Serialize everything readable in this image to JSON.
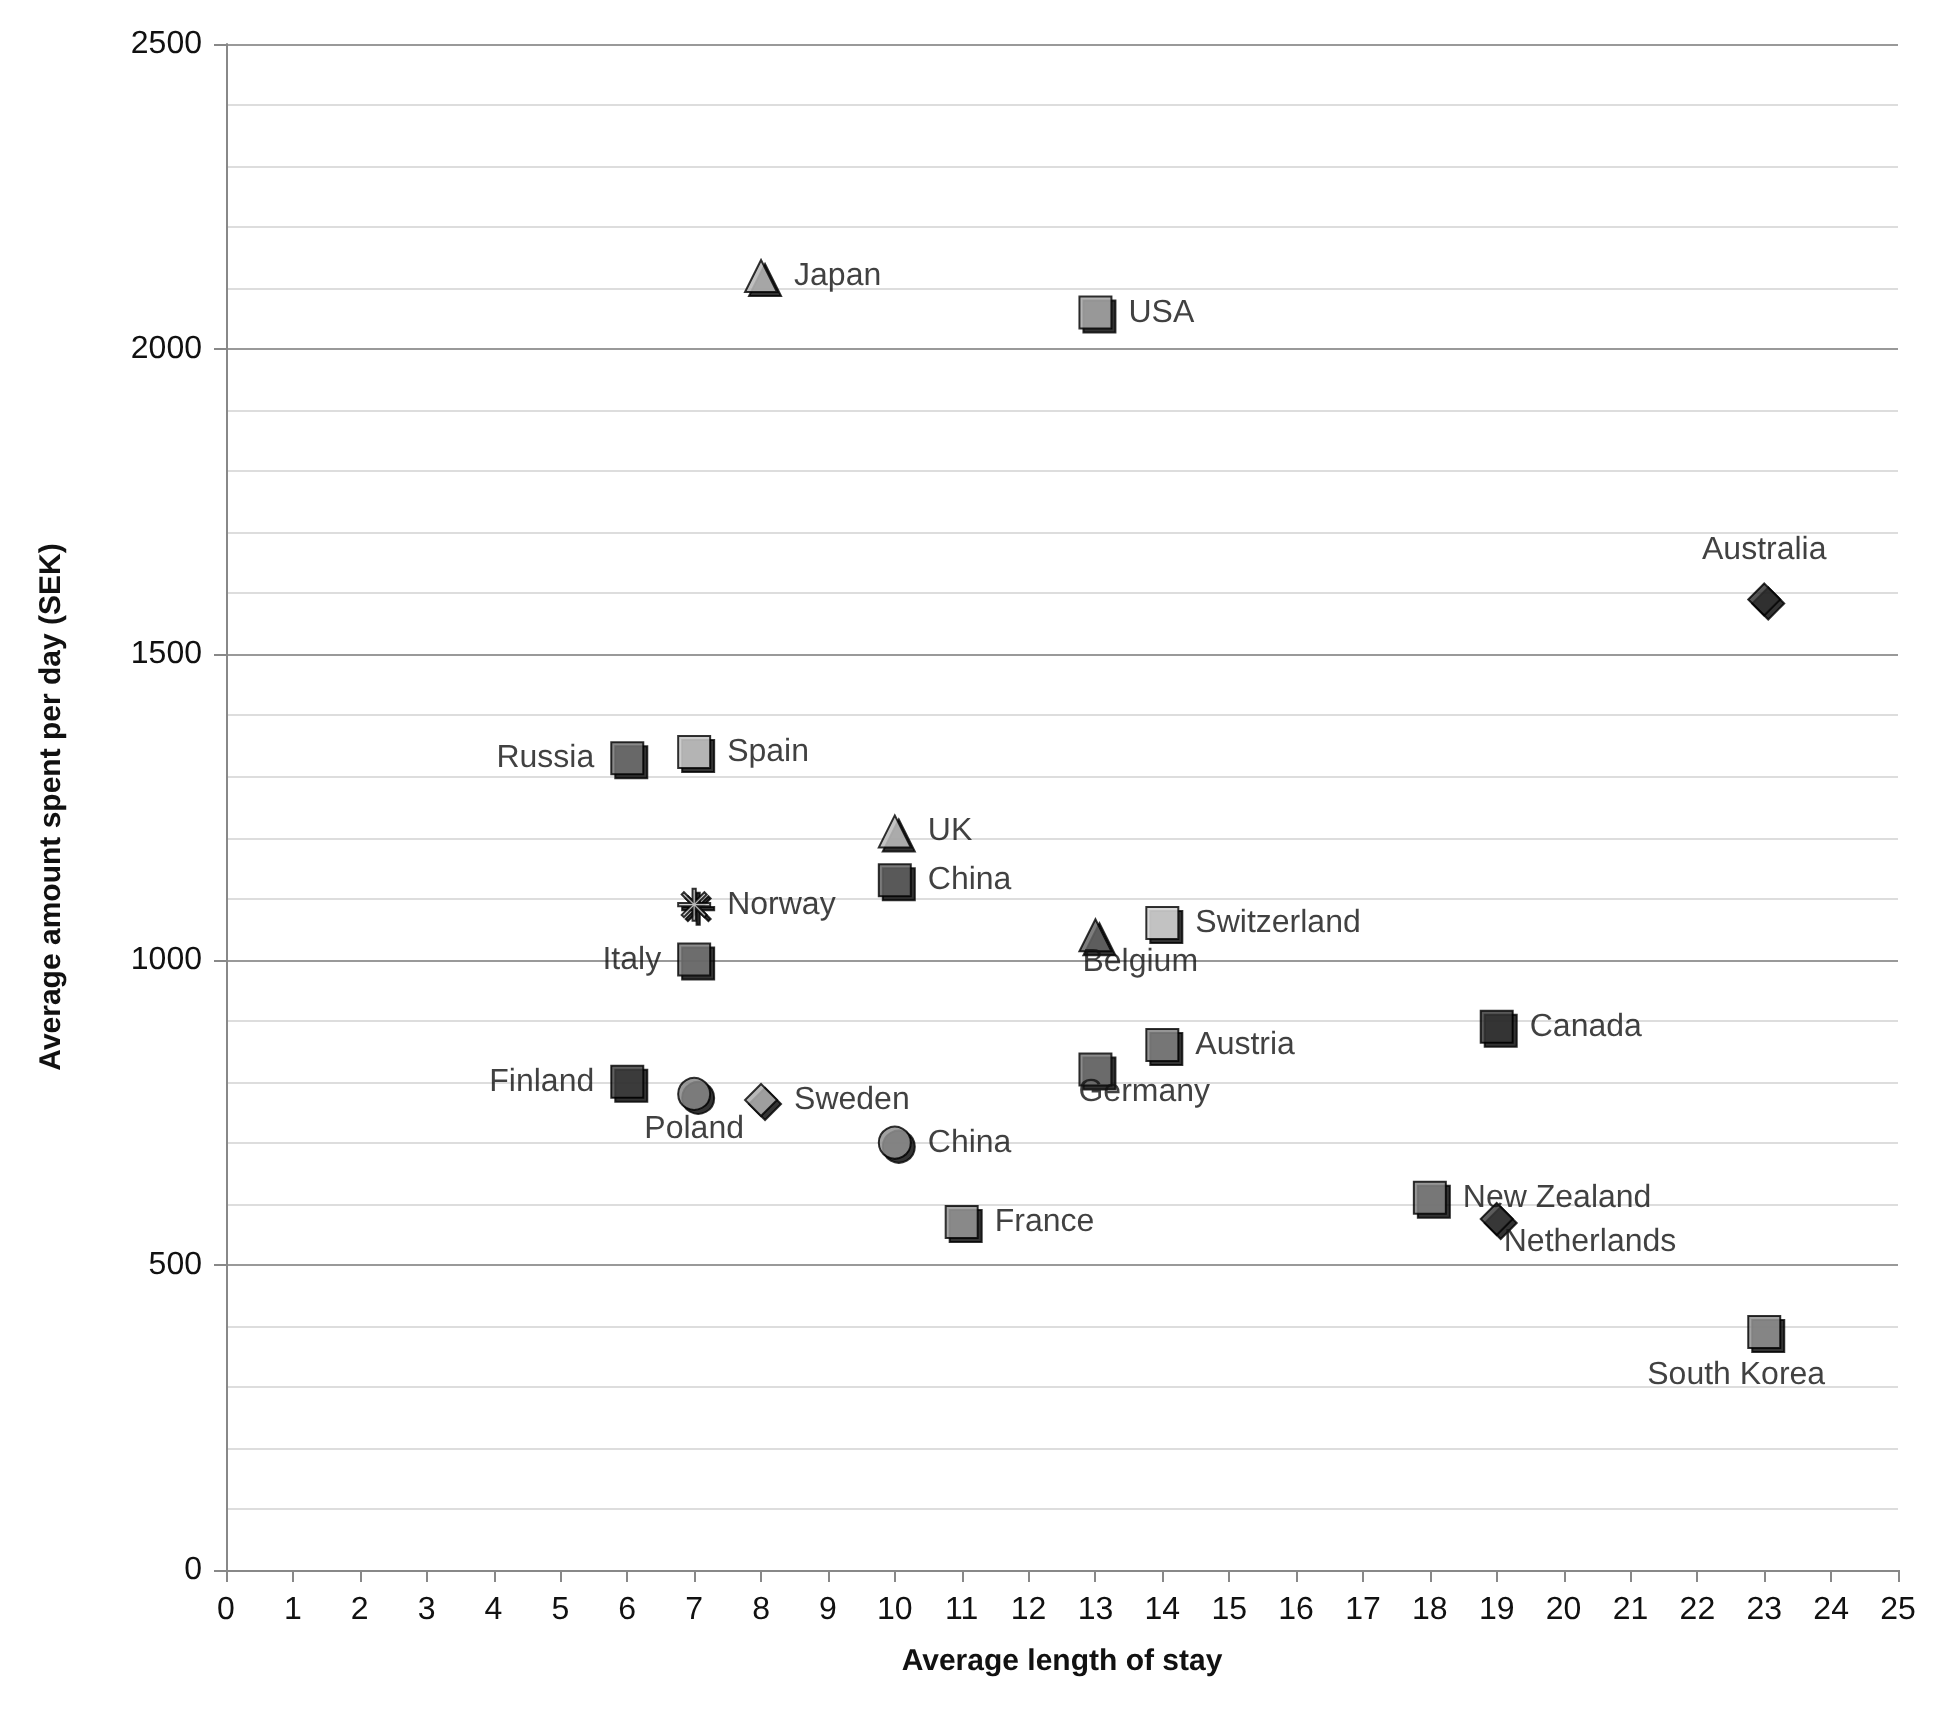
{
  "chart_data": {
    "type": "scatter",
    "xlabel": "Average length of stay",
    "ylabel": "Average amount spent per day (SEK)",
    "xlim": [
      0,
      25
    ],
    "xticks": [
      0,
      1,
      2,
      3,
      4,
      5,
      6,
      7,
      8,
      9,
      10,
      11,
      12,
      13,
      14,
      15,
      16,
      17,
      18,
      19,
      20,
      21,
      22,
      23,
      24,
      25
    ],
    "ylim": [
      0,
      2500
    ],
    "yticks": [
      0,
      500,
      1000,
      1500,
      2000,
      2500
    ],
    "grid": "y",
    "legend": false,
    "series": [
      {
        "name": "Japan",
        "color": "#b0b0b0",
        "marker": "triangle",
        "x": [
          8
        ],
        "values": [
          2120
        ]
      },
      {
        "name": "USA",
        "color": "#a0a0a0",
        "marker": "square",
        "x": [
          13
        ],
        "values": [
          2060
        ]
      },
      {
        "name": "Australia",
        "color": "#2a2a2a",
        "marker": "diamond",
        "x": [
          23
        ],
        "values": [
          1590
        ]
      },
      {
        "name": "Russia",
        "color": "#6a6a6a",
        "marker": "square",
        "x": [
          6
        ],
        "values": [
          1330
        ]
      },
      {
        "name": "Spain",
        "color": "#c0c0c0",
        "marker": "square",
        "x": [
          7
        ],
        "values": [
          1340
        ]
      },
      {
        "name": "UK",
        "color": "#b5b5b5",
        "marker": "triangle",
        "x": [
          10
        ],
        "values": [
          1210
        ]
      },
      {
        "name": "China",
        "color": "#5a5a5a",
        "marker": "square",
        "x": [
          10
        ],
        "values": [
          1130
        ]
      },
      {
        "name": "Norway",
        "color": "#c8c8c8",
        "marker": "star",
        "x": [
          7
        ],
        "values": [
          1090
        ]
      },
      {
        "name": "Italy",
        "color": "#707070",
        "marker": "square",
        "x": [
          7
        ],
        "values": [
          1000
        ]
      },
      {
        "name": "Switzerland",
        "color": "#d0d0d0",
        "marker": "square",
        "x": [
          14
        ],
        "values": [
          1060
        ]
      },
      {
        "name": "Belgium",
        "color": "#5e5e5e",
        "marker": "triangle",
        "x": [
          13
        ],
        "values": [
          1040
        ]
      },
      {
        "name": "Finland",
        "color": "#3a3a3a",
        "marker": "square",
        "x": [
          6
        ],
        "values": [
          800
        ]
      },
      {
        "name": "Poland",
        "color": "#808080",
        "marker": "circle",
        "x": [
          7
        ],
        "values": [
          780
        ]
      },
      {
        "name": "Sweden",
        "color": "#a8a8a8",
        "marker": "diamond",
        "x": [
          8
        ],
        "values": [
          770
        ]
      },
      {
        "name": "China",
        "color": "#8a8a8a",
        "marker": "circle",
        "x": [
          10
        ],
        "values": [
          700
        ]
      },
      {
        "name": "France",
        "color": "#909090",
        "marker": "square",
        "x": [
          11
        ],
        "values": [
          570
        ]
      },
      {
        "name": "Germany",
        "color": "#6e6e6e",
        "marker": "square",
        "x": [
          13
        ],
        "values": [
          820
        ]
      },
      {
        "name": "Austria",
        "color": "#7a7a7a",
        "marker": "square",
        "x": [
          14
        ],
        "values": [
          860
        ]
      },
      {
        "name": "Canada",
        "color": "#2e2e2e",
        "marker": "square",
        "x": [
          19
        ],
        "values": [
          890
        ]
      },
      {
        "name": "New Zealand",
        "color": "#7c7c7c",
        "marker": "square",
        "x": [
          18
        ],
        "values": [
          610
        ]
      },
      {
        "name": "Netherlands",
        "color": "#333333",
        "marker": "diamond",
        "x": [
          19
        ],
        "values": [
          575
        ]
      },
      {
        "name": "South Korea",
        "color": "#8c8c8c",
        "marker": "square",
        "x": [
          23
        ],
        "values": [
          390
        ]
      }
    ]
  }
}
